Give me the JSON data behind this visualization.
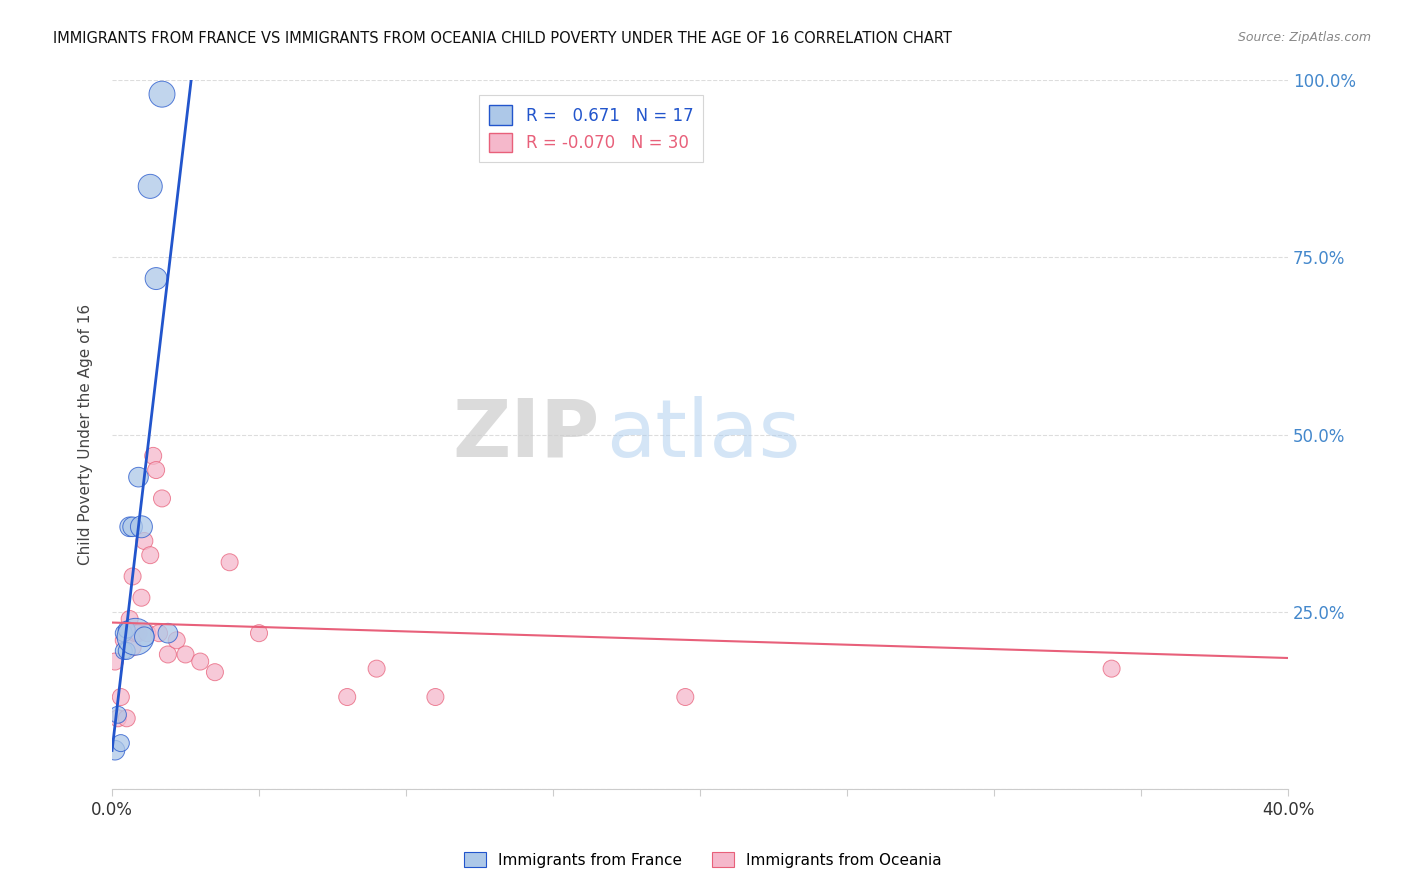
{
  "title": "IMMIGRANTS FROM FRANCE VS IMMIGRANTS FROM OCEANIA CHILD POVERTY UNDER THE AGE OF 16 CORRELATION CHART",
  "source": "Source: ZipAtlas.com",
  "ylabel": "Child Poverty Under the Age of 16",
  "legend_france_r": "0.671",
  "legend_france_n": "17",
  "legend_oceania_r": "-0.070",
  "legend_oceania_n": "30",
  "france_color": "#adc8e8",
  "oceania_color": "#f5b8cb",
  "france_line_color": "#2255cc",
  "oceania_line_color": "#e8607a",
  "watermark_zip": "ZIP",
  "watermark_atlas": "atlas",
  "france_x": [
    0.001,
    0.002,
    0.003,
    0.004,
    0.004,
    0.005,
    0.005,
    0.006,
    0.007,
    0.008,
    0.009,
    0.01,
    0.011,
    0.013,
    0.015,
    0.017,
    0.019
  ],
  "france_y": [
    0.055,
    0.105,
    0.065,
    0.195,
    0.22,
    0.195,
    0.225,
    0.37,
    0.37,
    0.215,
    0.44,
    0.37,
    0.215,
    0.85,
    0.72,
    0.98,
    0.22
  ],
  "france_sizes": [
    200,
    150,
    150,
    150,
    150,
    150,
    150,
    200,
    200,
    700,
    200,
    250,
    200,
    300,
    250,
    350,
    200
  ],
  "oceania_x": [
    0.001,
    0.002,
    0.003,
    0.004,
    0.005,
    0.006,
    0.007,
    0.007,
    0.008,
    0.009,
    0.01,
    0.011,
    0.012,
    0.013,
    0.014,
    0.015,
    0.016,
    0.017,
    0.019,
    0.022,
    0.025,
    0.03,
    0.035,
    0.04,
    0.05,
    0.08,
    0.09,
    0.11,
    0.195,
    0.34
  ],
  "oceania_y": [
    0.18,
    0.1,
    0.13,
    0.21,
    0.1,
    0.24,
    0.2,
    0.3,
    0.22,
    0.22,
    0.27,
    0.35,
    0.22,
    0.33,
    0.47,
    0.45,
    0.22,
    0.41,
    0.19,
    0.21,
    0.19,
    0.18,
    0.165,
    0.32,
    0.22,
    0.13,
    0.17,
    0.13,
    0.13,
    0.17
  ],
  "oceania_sizes": [
    150,
    150,
    150,
    150,
    150,
    150,
    150,
    150,
    150,
    150,
    150,
    150,
    150,
    150,
    150,
    150,
    150,
    150,
    150,
    150,
    150,
    150,
    150,
    150,
    150,
    150,
    150,
    150,
    150,
    150
  ],
  "xlim": [
    0.0,
    0.4
  ],
  "ylim": [
    0.0,
    1.0
  ],
  "xticks": [
    0.0,
    0.05,
    0.1,
    0.15,
    0.2,
    0.25,
    0.3,
    0.35,
    0.4
  ],
  "yticks": [
    0.0,
    0.25,
    0.5,
    0.75,
    1.0
  ],
  "grid_color": "#dddddd",
  "france_trend": [
    0.0,
    0.4
  ],
  "oceania_trend_y0": 0.235,
  "oceania_trend_y1": 0.185
}
